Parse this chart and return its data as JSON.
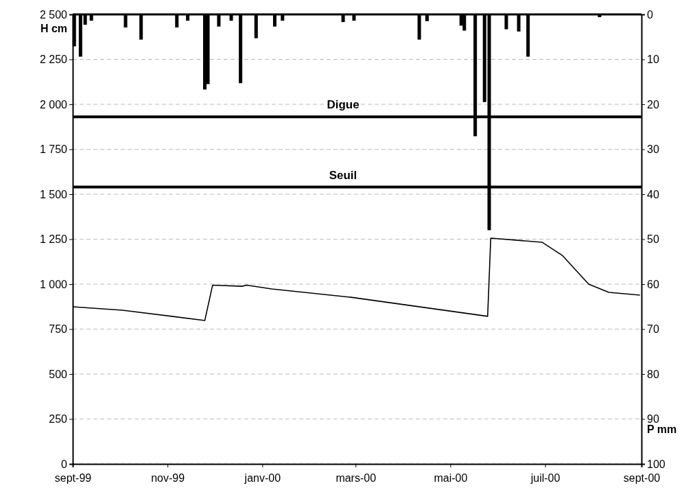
{
  "chart_data": {
    "type": "line",
    "ylabel": "H cm",
    "y2label": "P mm",
    "xlim": [
      "1999-09-01",
      "2000-09-01"
    ],
    "xticks": [
      {
        "value": "1999-09-01",
        "label": "sept-99"
      },
      {
        "value": "1999-11-01",
        "label": "nov-99"
      },
      {
        "value": "2000-01-01",
        "label": "janv-00"
      },
      {
        "value": "2000-03-01",
        "label": "mars-00"
      },
      {
        "value": "2000-05-01",
        "label": "mai-00"
      },
      {
        "value": "2000-07-01",
        "label": "juil-00"
      },
      {
        "value": "2000-09-01",
        "label": "sept-00"
      }
    ],
    "ylim": [
      0,
      2500
    ],
    "yticks": [
      0,
      250,
      500,
      750,
      {
        "value": 1000,
        "label": "1 000"
      },
      {
        "value": 1250,
        "label": "1 250"
      },
      {
        "value": 1500,
        "label": "1 500"
      },
      {
        "value": 1750,
        "label": "1 750"
      },
      {
        "value": 2000,
        "label": "2 000"
      },
      {
        "value": 2250,
        "label": "2 250"
      },
      {
        "value": 2500,
        "label": "2 500"
      }
    ],
    "y2lim": [
      100,
      0
    ],
    "y2ticks": [
      0,
      10,
      20,
      30,
      40,
      50,
      60,
      70,
      80,
      90,
      100
    ],
    "grid": "y",
    "series": [
      {
        "type": "bar",
        "axis": "y2",
        "color": "#000000",
        "x": [
          "1999-09-02",
          "1999-09-06",
          "1999-09-09",
          "1999-09-13",
          "1999-10-05",
          "1999-10-15",
          "1999-11-07",
          "1999-11-14",
          "1999-11-25",
          "1999-11-27",
          "1999-12-04",
          "1999-12-12",
          "1999-12-18",
          "1999-12-28",
          "2000-01-09",
          "2000-01-14",
          "2000-02-22",
          "2000-02-29",
          "2000-04-11",
          "2000-04-16",
          "2000-05-08",
          "2000-05-10",
          "2000-05-17",
          "2000-05-23",
          "2000-05-26",
          "2000-06-06",
          "2000-06-14",
          "2000-06-20",
          "2000-08-05"
        ],
        "values": [
          7.1,
          9.4,
          2.3,
          1.4,
          2.9,
          5.6,
          2.9,
          1.4,
          16.7,
          15.5,
          2.7,
          1.4,
          15.3,
          5.3,
          2.7,
          1.4,
          1.7,
          1.4,
          5.6,
          1.5,
          2.5,
          3.6,
          27.1,
          19.5,
          48,
          3.3,
          3.8,
          9.4,
          0.6
        ]
      },
      {
        "color": "#000000",
        "x": [
          "1999-09-01",
          "1999-10-03",
          "1999-11-25",
          "1999-11-30",
          "1999-12-19",
          "1999-12-22",
          "2000-01-07",
          "2000-02-27",
          "2000-05-25",
          "2000-05-27",
          "2000-06-29",
          "2000-07-12",
          "2000-07-29",
          "2000-08-11",
          "2000-08-31"
        ],
        "values": [
          874,
          855,
          798,
          994,
          988,
          994,
          973,
          927,
          821,
          1256,
          1233,
          1160,
          1000,
          954,
          939
        ]
      }
    ],
    "ref_lines": [
      {
        "axis": "y",
        "value": 1930,
        "label": "Digue",
        "color": "#000000"
      },
      {
        "axis": "y",
        "value": 1540,
        "label": "Seuil",
        "color": "#000000"
      }
    ]
  }
}
